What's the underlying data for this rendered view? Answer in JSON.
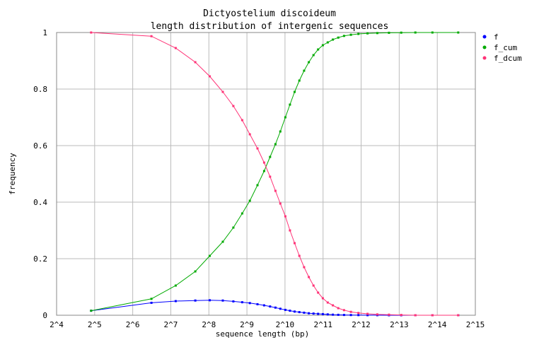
{
  "chart_data": {
    "type": "line",
    "title": "Dictyostelium discoideum",
    "subtitle": "length distribution of intergenic sequences",
    "xlabel": "sequence length (bp)",
    "ylabel": "frequency",
    "x_scale": "log2",
    "xlim": [
      16,
      32768
    ],
    "ylim": [
      0,
      1
    ],
    "x_tick_labels": [
      "2^4",
      "2^5",
      "2^6",
      "2^7",
      "2^8",
      "2^9",
      "2^10",
      "2^11",
      "2^12",
      "2^13",
      "2^14",
      "2^15"
    ],
    "y_tick_labels": [
      "0",
      "0.2",
      "0.4",
      "0.6",
      "0.8",
      "1"
    ],
    "grid": true,
    "legend_position": "right",
    "x": [
      30,
      90,
      140,
      200,
      260,
      330,
      400,
      470,
      540,
      620,
      700,
      780,
      860,
      940,
      1030,
      1120,
      1220,
      1330,
      1450,
      1580,
      1720,
      1870,
      2040,
      2230,
      2450,
      2700,
      3000,
      3400,
      3900,
      4600,
      5500,
      6800,
      8500,
      11000,
      15000,
      24000
    ],
    "series": [
      {
        "name": "f",
        "color": "#0000ff",
        "values": [
          0.016,
          0.044,
          0.05,
          0.052,
          0.053,
          0.052,
          0.049,
          0.046,
          0.043,
          0.039,
          0.035,
          0.031,
          0.027,
          0.023,
          0.019,
          0.016,
          0.013,
          0.011,
          0.009,
          0.007,
          0.006,
          0.005,
          0.004,
          0.003,
          0.002,
          0.0015,
          0.001,
          0.0008,
          0.0005,
          0.0003,
          0.0002,
          0.0001,
          0.0001,
          0.0,
          0.0,
          0.0
        ]
      },
      {
        "name": "f_cum",
        "color": "#00aa00",
        "values": [
          0.016,
          0.058,
          0.105,
          0.155,
          0.21,
          0.26,
          0.31,
          0.36,
          0.405,
          0.46,
          0.51,
          0.56,
          0.605,
          0.65,
          0.7,
          0.745,
          0.79,
          0.83,
          0.865,
          0.895,
          0.92,
          0.94,
          0.955,
          0.965,
          0.975,
          0.982,
          0.988,
          0.992,
          0.995,
          0.997,
          0.998,
          0.999,
          0.9995,
          1.0,
          1.0,
          1.0
        ]
      },
      {
        "name": "f_dcum",
        "color": "#ff3377",
        "values": [
          1.0,
          0.987,
          0.945,
          0.895,
          0.845,
          0.79,
          0.74,
          0.69,
          0.64,
          0.59,
          0.54,
          0.49,
          0.44,
          0.395,
          0.35,
          0.3,
          0.255,
          0.21,
          0.17,
          0.135,
          0.105,
          0.08,
          0.06,
          0.045,
          0.035,
          0.025,
          0.018,
          0.012,
          0.008,
          0.005,
          0.003,
          0.002,
          0.001,
          0.0,
          0.0,
          0.0
        ]
      }
    ]
  }
}
